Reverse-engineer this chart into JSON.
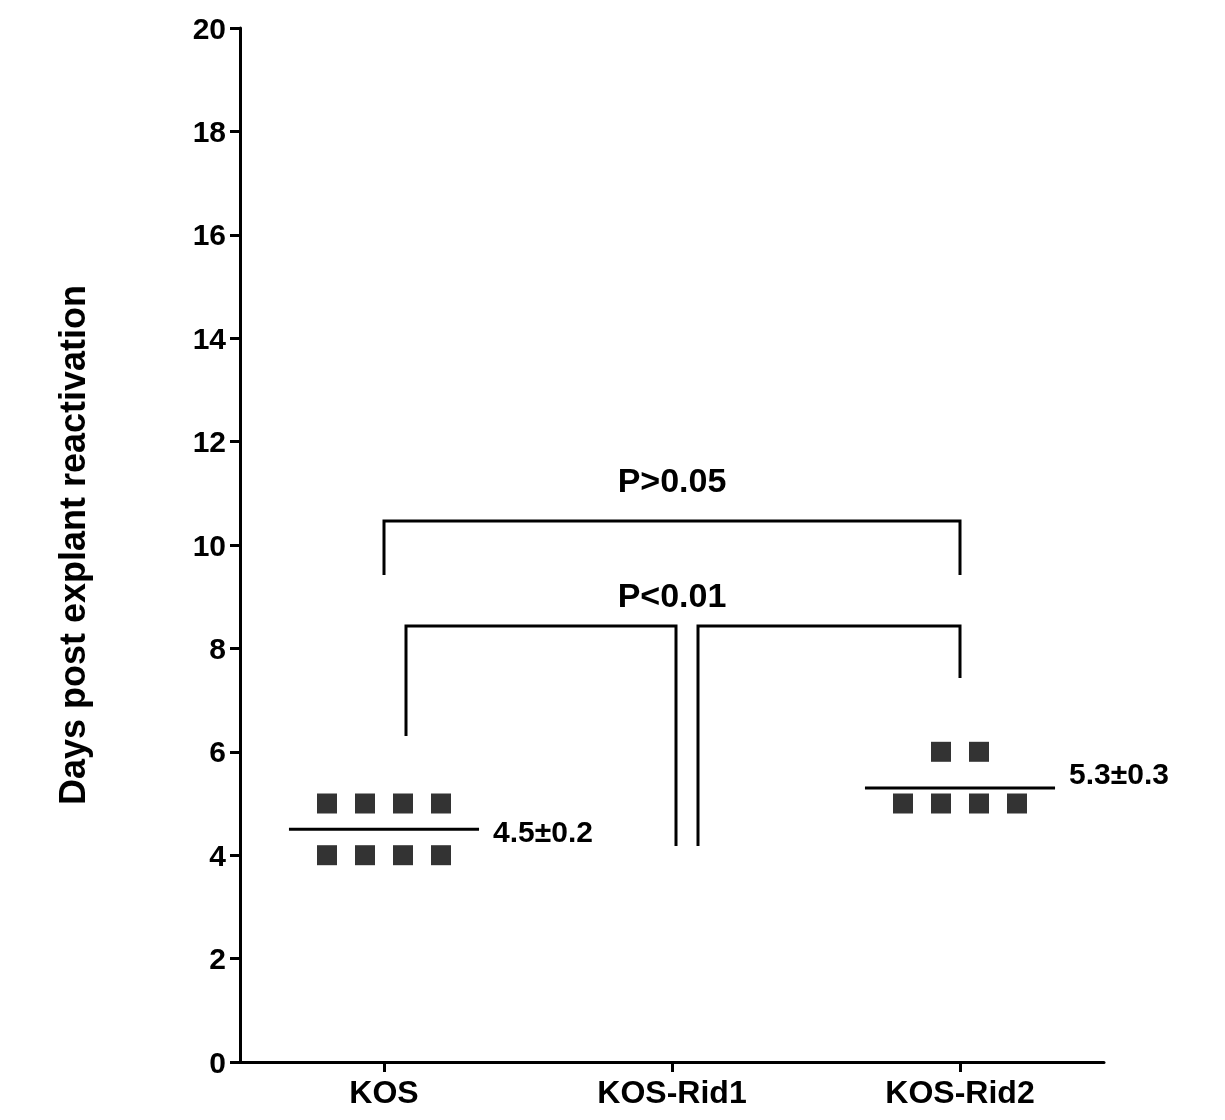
{
  "chart_data": {
    "type": "scatter",
    "ylabel": "Days post explant reactivation",
    "categories": [
      "KOS",
      "KOS-Rid1",
      "KOS-Rid2"
    ],
    "ylim": [
      0,
      20
    ],
    "yticks": [
      0,
      2,
      4,
      6,
      8,
      10,
      12,
      14,
      16,
      18,
      20
    ],
    "grid": false,
    "marker": "square",
    "series": [
      {
        "color": "#000000",
        "x": [
          "KOS",
          "KOS",
          "KOS",
          "KOS",
          "KOS",
          "KOS",
          "KOS",
          "KOS"
        ],
        "values": [
          5,
          5,
          5,
          5,
          4,
          4,
          4,
          4
        ]
      },
      {
        "color": "#000000",
        "x": [
          "KOS-Rid2",
          "KOS-Rid2",
          "KOS-Rid2",
          "KOS-Rid2",
          "KOS-Rid2",
          "KOS-Rid2"
        ],
        "values": [
          6,
          6,
          5,
          5,
          5,
          5
        ]
      }
    ],
    "ref_lines": [
      {
        "axis": "y",
        "value": 4.5,
        "label": "4.5±0.2",
        "color": "#000000"
      },
      {
        "axis": "y",
        "value": 5.3,
        "label": "5.3±0.3",
        "color": "#000000"
      }
    ],
    "annotations": [
      "P>0.05",
      "P<0.01"
    ]
  }
}
